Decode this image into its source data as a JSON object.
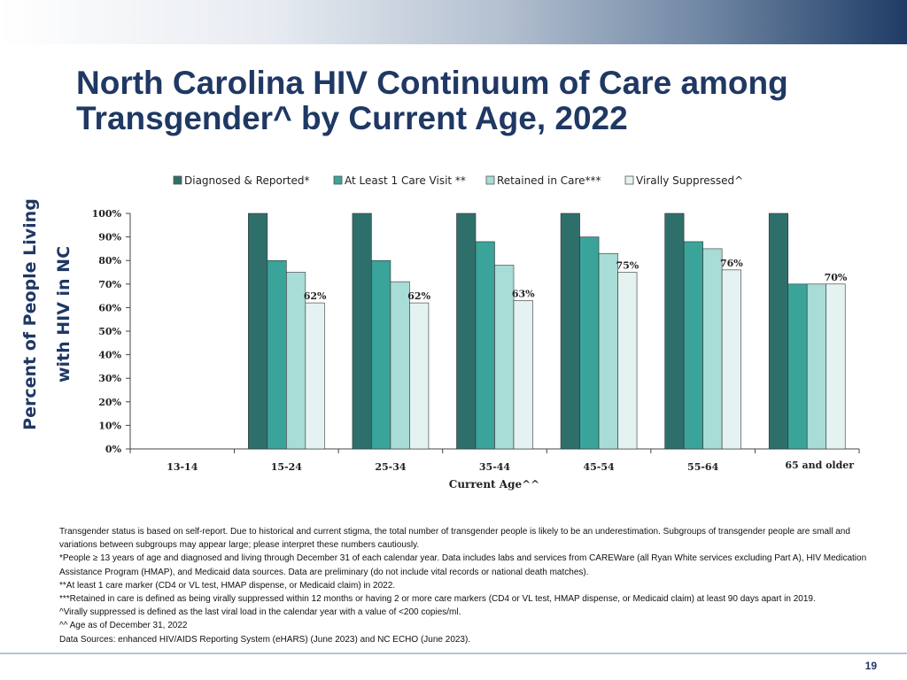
{
  "header": {
    "title_line1": "North Carolina HIV Continuum of Care among",
    "title_line2": "Transgender^ by Current Age, 2022"
  },
  "colors": {
    "title": "#1f3864",
    "banner_end": "#1f3c66",
    "series": [
      "#2e6f6b",
      "#3aa39a",
      "#a8dcd6",
      "#e4f3f1"
    ]
  },
  "chart_data": {
    "type": "bar",
    "title": "North Carolina HIV Continuum of Care among Transgender^ by Current Age, 2022",
    "ylabel_line1": "Percent of People Living",
    "ylabel_line2": "with HIV in NC",
    "xlabel": "Current Age^^",
    "categories": [
      "13-14",
      "15-24",
      "25-34",
      "35-44",
      "45-54",
      "55-64",
      "65 and older"
    ],
    "yticks": [
      "0%",
      "10%",
      "20%",
      "30%",
      "40%",
      "50%",
      "60%",
      "70%",
      "80%",
      "90%",
      "100%"
    ],
    "ylim": [
      0,
      100
    ],
    "grid": false,
    "legend_position": "top",
    "series": [
      {
        "name": "Diagnosed & Reported*",
        "values": [
          null,
          100,
          100,
          100,
          100,
          100,
          100
        ]
      },
      {
        "name": "At Least 1 Care Visit **",
        "values": [
          null,
          80,
          80,
          88,
          90,
          88,
          70
        ]
      },
      {
        "name": "Retained in Care***",
        "values": [
          null,
          75,
          71,
          78,
          83,
          85,
          70
        ]
      },
      {
        "name": "Virally Suppressed^",
        "values": [
          null,
          62,
          62,
          63,
          75,
          76,
          70
        ]
      }
    ],
    "data_labels": [
      {
        "series": 3,
        "category": 1,
        "text": "62%"
      },
      {
        "series": 3,
        "category": 2,
        "text": "62%"
      },
      {
        "series": 3,
        "category": 3,
        "text": "63%"
      },
      {
        "series": 3,
        "category": 4,
        "text": "75%"
      },
      {
        "series": 3,
        "category": 5,
        "text": "76%"
      },
      {
        "series": 3,
        "category": 6,
        "text": "70%"
      }
    ]
  },
  "notes": [
    "Transgender status is based on self-report. Due to historical and current stigma, the total number of transgender people is likely to be an underestimation. Subgroups of transgender people are small and variations between subgroups may appear large; please interpret these numbers cautiously.",
    "*People ≥ 13 years of age and diagnosed and living through December 31 of each calendar year. Data includes labs and services from CAREWare (all Ryan White services excluding Part A), HIV Medication Assistance Program (HMAP), and Medicaid data sources. Data are preliminary (do not include vital records or national death matches).",
    "**At least 1 care marker (CD4 or VL test, HMAP dispense, or Medicaid claim) in 2022.",
    "***Retained in care is defined as being virally suppressed within 12 months or having 2 or more care markers (CD4 or VL test, HMAP dispense, or Medicaid claim) at least 90 days apart in 2019.",
    "^Virally suppressed is defined as the last viral load in the calendar year with a value of <200 copies/ml.",
    "^^ Age as of December 31, 2022",
    "Data Sources: enhanced HIV/AIDS Reporting System (eHARS) (June 2023) and NC ECHO (June 2023)."
  ],
  "footer": {
    "page_number": "19"
  }
}
